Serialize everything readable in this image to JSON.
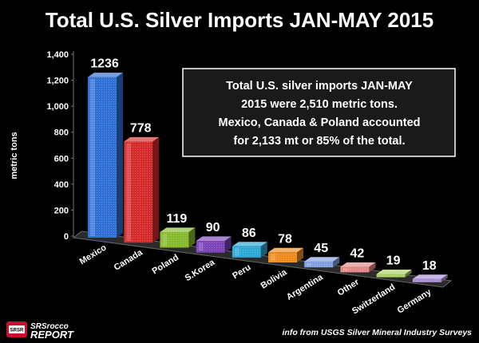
{
  "chart_data": {
    "type": "bar",
    "title": "Total U.S. Silver Imports JAN-MAY 2015",
    "xlabel": "",
    "ylabel": "metric tons",
    "ylim": [
      0,
      1400
    ],
    "yticks": [
      0,
      200,
      400,
      600,
      800,
      1000,
      1200,
      1400
    ],
    "ytick_labels": [
      "0",
      "200",
      "400",
      "600",
      "800",
      "1,000",
      "1,200",
      "1,400"
    ],
    "categories": [
      "Mexico",
      "Canada",
      "Poland",
      "S.Korea",
      "Peru",
      "Bolivia",
      "Argentina",
      "Other",
      "Switzerland",
      "Germany"
    ],
    "values": [
      1236,
      778,
      119,
      90,
      86,
      78,
      45,
      42,
      19,
      18
    ],
    "colors": [
      "#2f6fd6",
      "#d42a2a",
      "#86b92c",
      "#7a43b8",
      "#2aa9d6",
      "#f08a1c",
      "#7f9fe0",
      "#e48686",
      "#aacf63",
      "#a98fd8"
    ],
    "annotation": [
      "Total U.S. silver imports JAN-MAY",
      "2015 were 2,510 metric tons.",
      "Mexico, Canada & Poland accounted",
      "for 2,133 mt or 85% of the total."
    ],
    "source": "info from USGS Silver Mineral Industry Surveys",
    "logo": {
      "line1": "SRSrocco",
      "line2": "REPORT",
      "icon_text": "SRSR"
    }
  }
}
